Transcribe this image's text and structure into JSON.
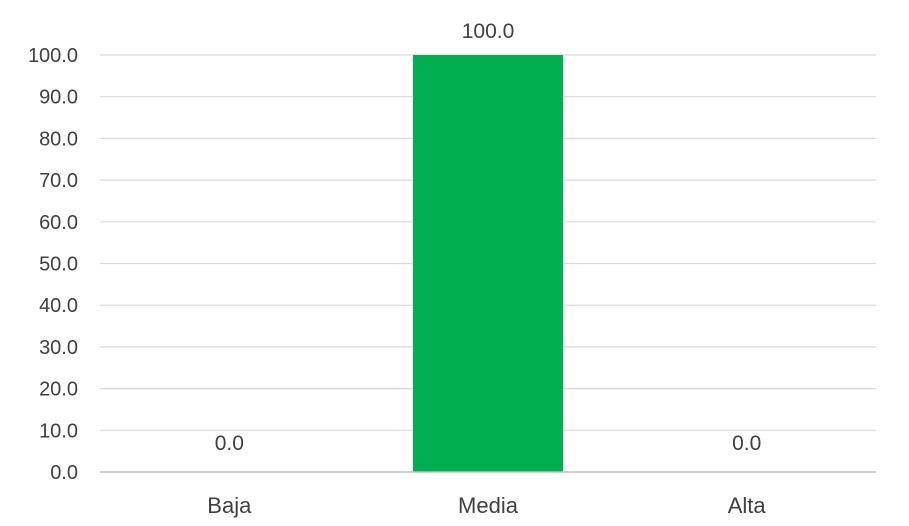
{
  "chart_data": {
    "type": "bar",
    "categories": [
      "Baja",
      "Media",
      "Alta"
    ],
    "values": [
      0.0,
      100.0,
      0.0
    ],
    "value_labels": [
      "0.0",
      "100.0",
      "0.0"
    ],
    "y_ticks": [
      "0.0",
      "10.0",
      "20.0",
      "30.0",
      "40.0",
      "50.0",
      "60.0",
      "70.0",
      "80.0",
      "90.0",
      "100.0"
    ],
    "ylim": [
      0,
      100
    ],
    "grid": true,
    "legend": "none",
    "bar_color": "#00b050"
  }
}
